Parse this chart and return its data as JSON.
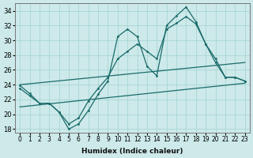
{
  "xlabel": "Humidex (Indice chaleur)",
  "xlim": [
    -0.5,
    23.5
  ],
  "ylim": [
    17.5,
    35
  ],
  "yticks": [
    18,
    20,
    22,
    24,
    26,
    28,
    30,
    32,
    34
  ],
  "xticks": [
    0,
    1,
    2,
    3,
    4,
    5,
    6,
    7,
    8,
    9,
    10,
    11,
    12,
    13,
    14,
    15,
    16,
    17,
    18,
    19,
    20,
    21,
    22,
    23
  ],
  "bg_color": "#cde9e9",
  "grid_color": "#a8d5d5",
  "line_color": "#1a6b6b",
  "line1_x": [
    0,
    1,
    2,
    3,
    4,
    5,
    6,
    7,
    8,
    9,
    10,
    11,
    12,
    13,
    14,
    15,
    16,
    17,
    18,
    19,
    20,
    21,
    22,
    23
  ],
  "line1_y": [
    23.9,
    22.8,
    21.5,
    21.5,
    20.3,
    18.0,
    18.7,
    20.5,
    22.7,
    24.5,
    30.5,
    31.5,
    30.5,
    26.5,
    25.2,
    32.0,
    33.3,
    34.5,
    32.5,
    29.5,
    27.0,
    25.0,
    25.0,
    24.5
  ],
  "line2_x": [
    0,
    1,
    2,
    3,
    4,
    5,
    6,
    7,
    8,
    9,
    10,
    11,
    12,
    13,
    14,
    15,
    16,
    17,
    18,
    19,
    20,
    21,
    22,
    23
  ],
  "line2_y": [
    23.5,
    22.5,
    21.5,
    21.5,
    20.3,
    18.7,
    19.5,
    21.8,
    23.5,
    25.0,
    27.5,
    28.5,
    29.5,
    28.5,
    27.5,
    31.5,
    32.3,
    33.2,
    32.2,
    29.5,
    27.5,
    25.0,
    25.0,
    24.5
  ],
  "line3_x": [
    0,
    23
  ],
  "line3_y": [
    24.0,
    27.0
  ],
  "line4_x": [
    0,
    23
  ],
  "line4_y": [
    21.0,
    24.2
  ]
}
